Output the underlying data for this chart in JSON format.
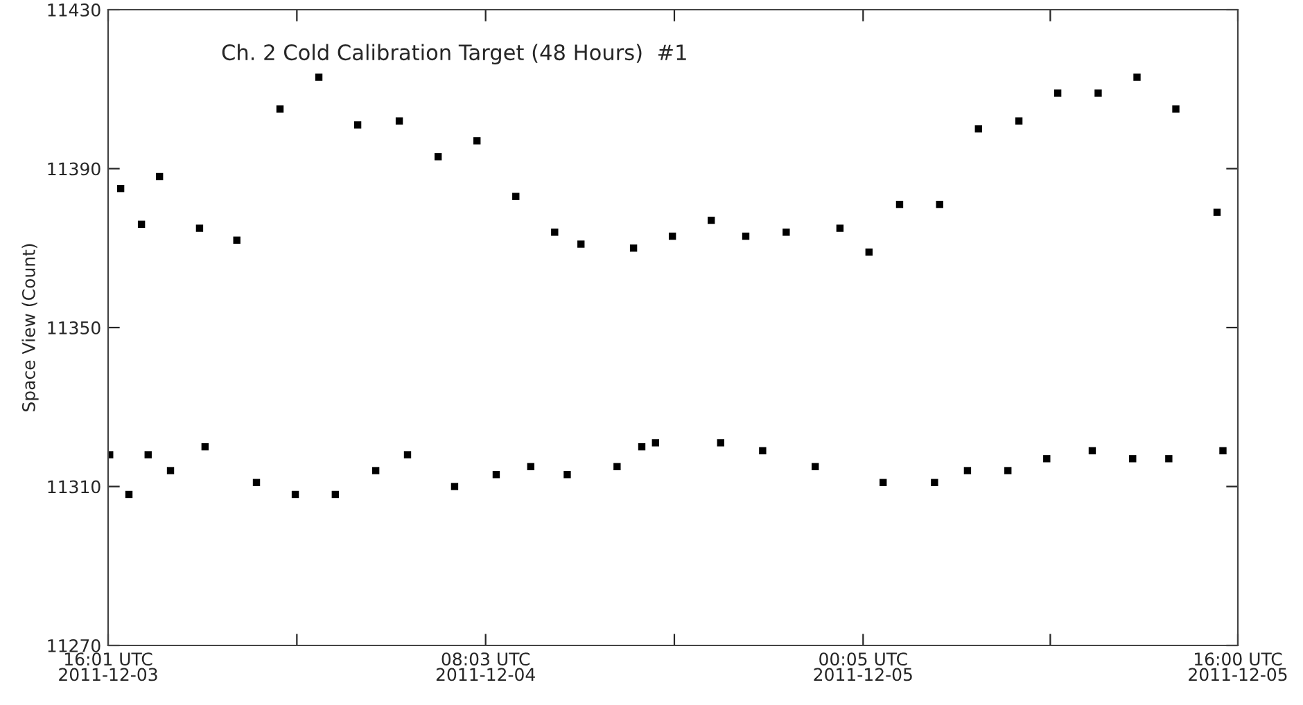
{
  "chart_data": {
    "type": "scatter",
    "title": "Ch. 2 Cold Calibration Target (48 Hours)  #1",
    "ylabel": "Space View (Count)",
    "xlim": [
      "2011-12-03T16:01",
      "2011-12-05T16:00"
    ],
    "ylim": [
      11270,
      11430
    ],
    "xticks": [
      {
        "value": "2011-12-03T16:01",
        "label": "16:01 UTC\n2011-12-03"
      },
      {
        "value": "2011-12-04T00:02",
        "label": null
      },
      {
        "value": "2011-12-04T08:03",
        "label": "08:03 UTC\n2011-12-04"
      },
      {
        "value": "2011-12-04T16:04",
        "label": null
      },
      {
        "value": "2011-12-05T00:05",
        "label": "00:05 UTC\n2011-12-05"
      },
      {
        "value": "2011-12-05T08:02",
        "label": null
      },
      {
        "value": "2011-12-05T16:00",
        "label": "16:00 UTC\n2011-12-05"
      }
    ],
    "yticks": [
      11270,
      11310,
      11350,
      11390,
      11430
    ],
    "marker": "square",
    "grid": false,
    "series": [
      {
        "color": "#000000",
        "x": [
          "2011-12-03T16:33",
          "2011-12-03T17:26",
          "2011-12-03T18:12",
          "2011-12-03T19:54",
          "2011-12-03T21:29",
          "2011-12-03T23:19",
          "2011-12-04T00:58",
          "2011-12-04T02:37",
          "2011-12-04T04:23",
          "2011-12-04T06:02",
          "2011-12-04T07:41",
          "2011-12-04T09:20",
          "2011-12-04T10:59",
          "2011-12-04T12:06",
          "2011-12-04T14:20",
          "2011-12-04T15:59",
          "2011-12-04T17:38",
          "2011-12-04T19:06",
          "2011-12-04T20:49",
          "2011-12-04T23:06",
          "2011-12-05T00:20",
          "2011-12-05T01:38",
          "2011-12-05T03:20",
          "2011-12-05T04:59",
          "2011-12-05T06:42",
          "2011-12-05T08:21",
          "2011-12-05T10:04",
          "2011-12-05T11:43",
          "2011-12-05T13:22",
          "2011-12-05T15:07",
          "2011-12-03T16:05",
          "2011-12-03T16:54",
          "2011-12-03T17:43",
          "2011-12-03T18:40",
          "2011-12-03T20:08",
          "2011-12-03T22:19",
          "2011-12-03T23:58",
          "2011-12-04T01:40",
          "2011-12-04T03:23",
          "2011-12-04T04:44",
          "2011-12-04T06:44",
          "2011-12-04T08:30",
          "2011-12-04T09:58",
          "2011-12-04T11:31",
          "2011-12-04T13:38",
          "2011-12-04T14:41",
          "2011-12-04T15:16",
          "2011-12-04T18:02",
          "2011-12-04T19:49",
          "2011-12-04T22:03",
          "2011-12-05T00:56",
          "2011-12-05T03:07",
          "2011-12-05T04:31",
          "2011-12-05T06:14",
          "2011-12-05T07:53",
          "2011-12-05T09:49",
          "2011-12-05T11:32",
          "2011-12-05T13:04",
          "2011-12-05T15:22"
        ],
        "values": [
          11385,
          11376,
          11388,
          11375,
          11372,
          11405,
          11413,
          11401,
          11402,
          11393,
          11397,
          11383,
          11374,
          11371,
          11370,
          11373,
          11377,
          11373,
          11374,
          11375,
          11369,
          11381,
          11381,
          11400,
          11402,
          11409,
          11409,
          11413,
          11405,
          11379,
          11318,
          11308,
          11318,
          11314,
          11320,
          11311,
          11308,
          11308,
          11314,
          11318,
          11310,
          11313,
          11315,
          11313,
          11315,
          11320,
          11321,
          11321,
          11319,
          11315,
          11311,
          11311,
          11314,
          11314,
          11317,
          11319,
          11317,
          11317,
          11319
        ]
      }
    ]
  }
}
